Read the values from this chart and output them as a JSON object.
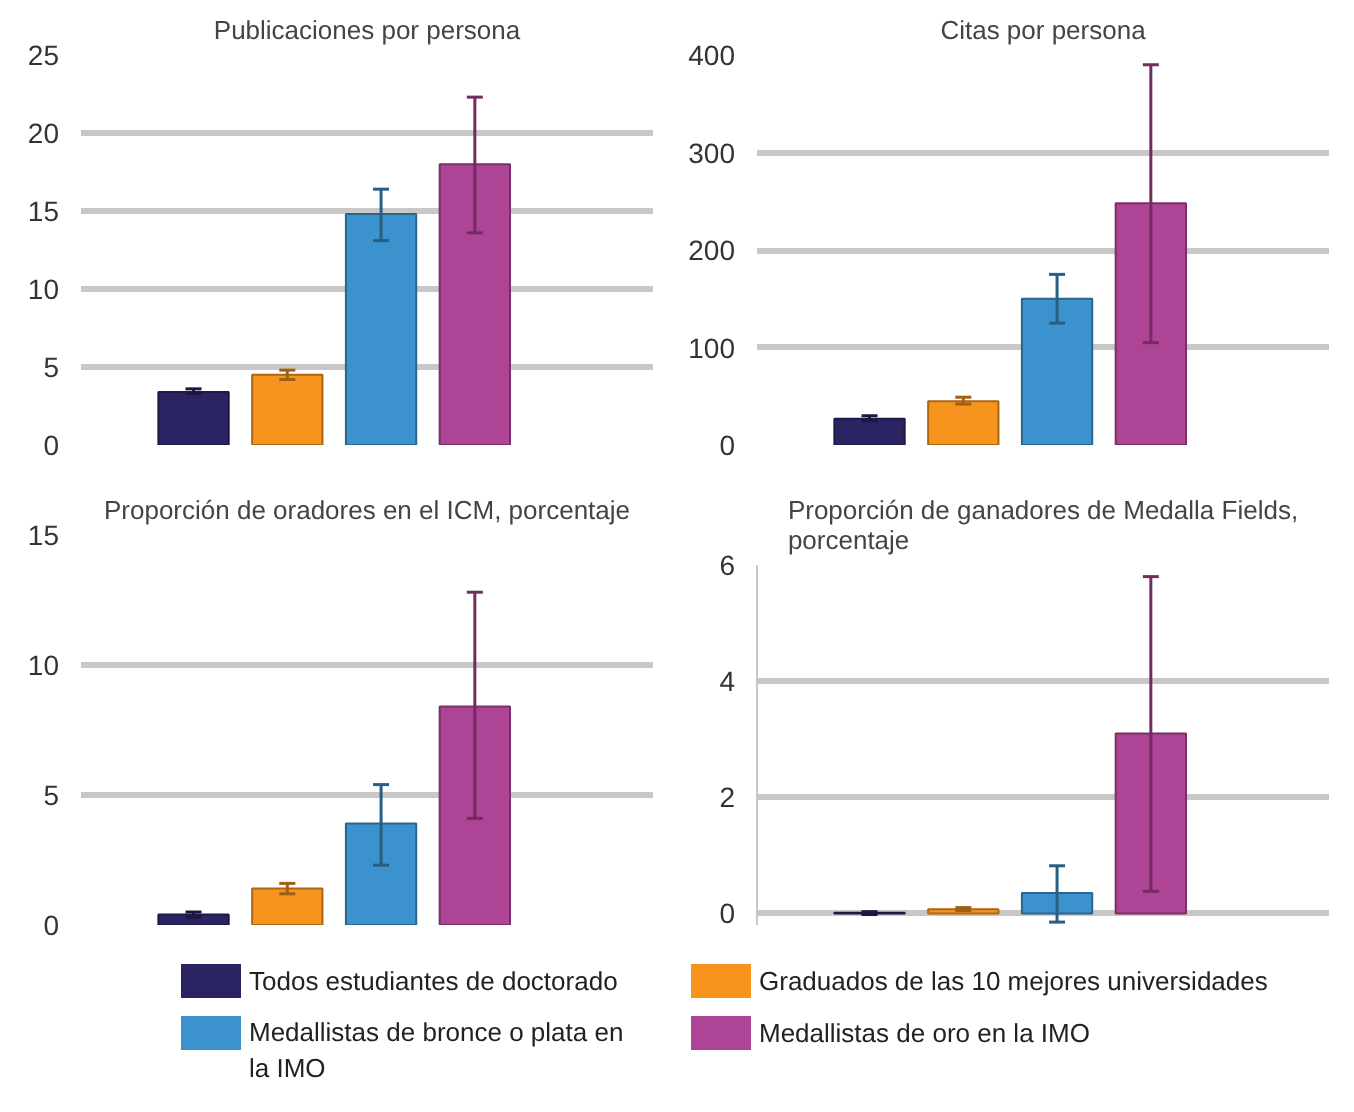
{
  "chart_data": [
    {
      "type": "bar",
      "title": "Publicaciones por persona",
      "categories": [
        null
      ],
      "ylim": [
        0,
        25
      ],
      "yticks": [
        0,
        5,
        10,
        15,
        20,
        25
      ],
      "grid": "y",
      "legend": "bottom",
      "series": [
        {
          "name": "Todos estudiantes de doctorado",
          "color": "#2b2463",
          "values": [
            3.4
          ],
          "errors": [
            [
              3.3,
              3.6
            ]
          ]
        },
        {
          "name": "Graduados de las 10 mejores universidades",
          "color": "#f7941d",
          "values": [
            4.5
          ],
          "errors": [
            [
              4.2,
              4.8
            ]
          ]
        },
        {
          "name": "Medallistas de bronce o plata en la IMO",
          "color": "#3b92cc",
          "values": [
            14.8
          ],
          "errors": [
            [
              13.1,
              16.4
            ]
          ]
        },
        {
          "name": "Medallistas de oro en la IMO",
          "color": "#ae4495",
          "values": [
            18
          ],
          "errors": [
            [
              13.6,
              22.3
            ]
          ]
        }
      ]
    },
    {
      "type": "bar",
      "title": "Citas por persona",
      "categories": [
        null
      ],
      "ylim": [
        0,
        400
      ],
      "yticks": [
        0,
        100,
        200,
        300,
        400
      ],
      "grid": "y",
      "series": [
        {
          "color": "#2b2463",
          "values": [
            27
          ],
          "errors": [
            [
              25,
              30
            ]
          ]
        },
        {
          "color": "#f7941d",
          "values": [
            45
          ],
          "errors": [
            [
              42,
              49
            ]
          ]
        },
        {
          "color": "#3b92cc",
          "values": [
            150
          ],
          "errors": [
            [
              125,
              175
            ]
          ]
        },
        {
          "color": "#ae4495",
          "values": [
            248
          ],
          "errors": [
            [
              105,
              390
            ]
          ]
        }
      ]
    },
    {
      "type": "bar",
      "title": "Proporción de oradores en el ICM, porcentaje",
      "categories": [
        null
      ],
      "ylim": [
        0,
        15
      ],
      "yticks": [
        0,
        5,
        10,
        15
      ],
      "grid": "y",
      "series": [
        {
          "color": "#2b2463",
          "values": [
            0.4
          ],
          "errors": [
            [
              0.3,
              0.5
            ]
          ]
        },
        {
          "color": "#f7941d",
          "values": [
            1.4
          ],
          "errors": [
            [
              1.2,
              1.6
            ]
          ]
        },
        {
          "color": "#3b92cc",
          "values": [
            3.9
          ],
          "errors": [
            [
              2.3,
              5.4
            ]
          ]
        },
        {
          "color": "#ae4495",
          "values": [
            8.4
          ],
          "errors": [
            [
              4.1,
              12.8
            ]
          ]
        }
      ]
    },
    {
      "type": "bar",
      "title": "Proporción de ganadores de Medalla Fields,\nporcentaje",
      "categories": [
        null
      ],
      "ylim": [
        -0.2,
        6
      ],
      "yticks": [
        0,
        2,
        4,
        6
      ],
      "grid": "y",
      "series": [
        {
          "color": "#2b2463",
          "values": [
            0.01
          ],
          "errors": [
            [
              -0.02,
              0.03
            ]
          ]
        },
        {
          "color": "#f7941d",
          "values": [
            0.07
          ],
          "errors": [
            [
              0.05,
              0.1
            ]
          ]
        },
        {
          "color": "#3b92cc",
          "values": [
            0.35
          ],
          "errors": [
            [
              -0.15,
              0.82
            ]
          ]
        },
        {
          "color": "#ae4495",
          "values": [
            3.1
          ],
          "errors": [
            [
              0.38,
              5.8
            ]
          ]
        }
      ]
    }
  ]
}
